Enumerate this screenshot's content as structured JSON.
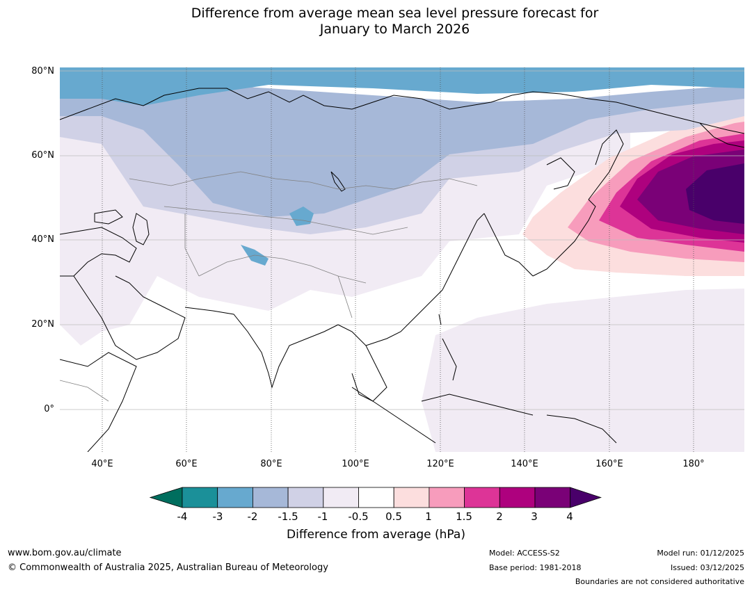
{
  "title": {
    "line1": "Difference from average mean sea level pressure forecast for",
    "line2": "January to March 2026"
  },
  "map": {
    "lat_labels": [
      "80°N",
      "60°N",
      "40°N",
      "20°N",
      "0°"
    ],
    "lon_labels": [
      "40°E",
      "60°E",
      "80°E",
      "100°E",
      "120°E",
      "140°E",
      "160°E",
      "180°"
    ],
    "extent": {
      "lon_min": 30,
      "lon_max": 192,
      "lat_min": -10,
      "lat_max": 81
    }
  },
  "colorbar": {
    "ticks": [
      "-4",
      "-3",
      "-2",
      "-1.5",
      "-1",
      "-0.5",
      "0.5",
      "1",
      "1.5",
      "2",
      "3",
      "4"
    ],
    "colors": [
      "#006e5e",
      "#1b9099",
      "#67a9cf",
      "#a6b8d8",
      "#d0d1e6",
      "#f1ebf4",
      "#ffffff",
      "#fcdede",
      "#f79cbc",
      "#dd3497",
      "#ae017e",
      "#7a0177",
      "#49006a"
    ],
    "label": "Difference from average (hPa)"
  },
  "footer": {
    "website": "www.bom.gov.au/climate",
    "copyright": "© Commonwealth of Australia 2025, Australian Bureau of Meteorology",
    "model": "Model: ACCESS-S2",
    "base_period": "Base period: 1981-2018",
    "model_run": "Model run: 01/12/2025",
    "issued": "Issued: 03/12/2025",
    "disclaimer": "Boundaries are not considered authoritative"
  }
}
